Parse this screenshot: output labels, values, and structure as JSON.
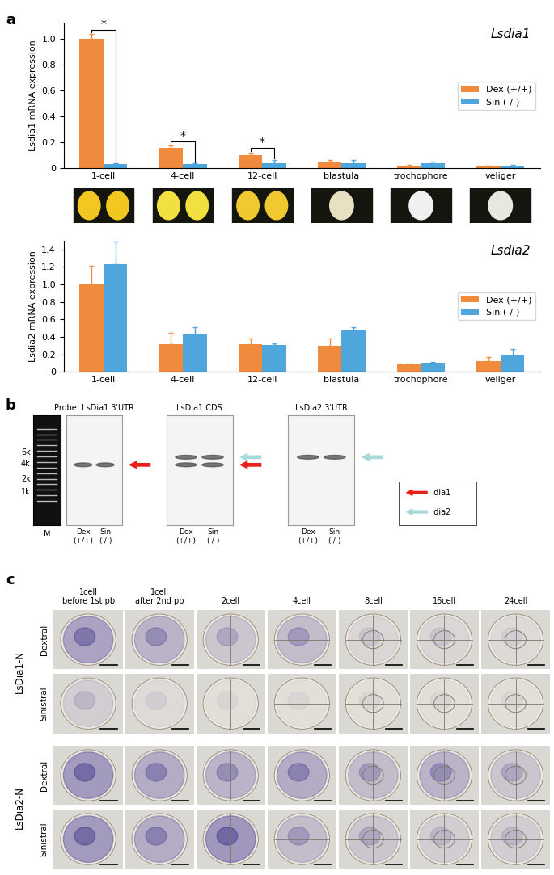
{
  "panel_labels": [
    "a",
    "b",
    "c"
  ],
  "chart_data": [
    {
      "type": "bar",
      "title": "Lsdia1",
      "y_label": "Lsdia1 mRNA expression",
      "categories": [
        "1-cell",
        "4-cell",
        "12-cell",
        "blastula",
        "trochophore",
        "veliger"
      ],
      "series": [
        {
          "name": "Dex (+/+)",
          "color": "#f08a3c",
          "values": [
            1.0,
            0.155,
            0.1,
            0.045,
            0.02,
            0.015
          ],
          "errors": [
            0.04,
            0.02,
            0.02,
            0.02,
            0.005,
            0.005
          ]
        },
        {
          "name": "Sin (-/-)",
          "color": "#4ea6dc",
          "values": [
            0.03,
            0.03,
            0.035,
            0.04,
            0.04,
            0.015
          ],
          "errors": [
            0.005,
            0.005,
            0.03,
            0.02,
            0.01,
            0.01
          ]
        }
      ],
      "ylim": [
        0,
        1.12
      ],
      "yticks": [
        0,
        0.2,
        0.4,
        0.6,
        0.8,
        1.0
      ],
      "legend": "center right",
      "annotations": [
        {
          "category": "1-cell",
          "text": "*"
        },
        {
          "category": "4-cell",
          "text": "*"
        },
        {
          "category": "12-cell",
          "text": "*"
        }
      ]
    },
    {
      "type": "bar",
      "title": "Lsdia2",
      "y_label": "Lsdia2 mRNA expression",
      "categories": [
        "1-cell",
        "4-cell",
        "12-cell",
        "blastula",
        "trochophore",
        "veliger"
      ],
      "series": [
        {
          "name": "Dex (+/+)",
          "color": "#f08a3c",
          "values": [
            1.0,
            0.32,
            0.32,
            0.3,
            0.085,
            0.125
          ],
          "errors": [
            0.21,
            0.13,
            0.06,
            0.08,
            0.01,
            0.04
          ]
        },
        {
          "name": "Sin (-/-)",
          "color": "#4ea6dc",
          "values": [
            1.23,
            0.43,
            0.31,
            0.47,
            0.1,
            0.19
          ],
          "errors": [
            0.26,
            0.08,
            0.02,
            0.04,
            0.01,
            0.07
          ]
        }
      ],
      "ylim": [
        0,
        1.5
      ],
      "yticks": [
        0,
        0.2,
        0.4,
        0.6,
        0.8,
        1.0,
        1.2,
        1.4
      ],
      "legend": "center right",
      "annotations": []
    }
  ],
  "northern_blot": {
    "marker_lane": "M",
    "size_labels": [
      "6k",
      "4k",
      "2k",
      "1k"
    ],
    "panels": [
      {
        "probe": "Probe: LsDia1 3'UTR",
        "lanes": [
          "Dex\n(+/+)",
          "Sin\n(-/-)"
        ],
        "bands": [
          ":dia1"
        ]
      },
      {
        "probe": "LsDia1 CDS",
        "lanes": [
          "Dex\n(+/+)",
          "Sin\n(-/-)"
        ],
        "bands": [
          ":dia2",
          ":dia1"
        ]
      },
      {
        "probe": "LsDia2 3'UTR",
        "lanes": [
          "Dex\n(+/+)",
          "Sin\n(-/-)"
        ],
        "bands": [
          ":dia2"
        ]
      }
    ],
    "arrow_key": [
      {
        "label": ":dia1",
        "color": "#e8201c"
      },
      {
        "label": ":dia2",
        "color": "#a8d8d8"
      }
    ]
  },
  "in_situ": {
    "stages": [
      "1cell\nbefore 1st pb",
      "1cell\nafter 2nd pb",
      "2cell",
      "4cell",
      "8cell",
      "16cell",
      "24cell"
    ],
    "probes": [
      {
        "name": "LsDia1-N",
        "rows": [
          "Dextral",
          "Sinistral"
        ]
      },
      {
        "name": "LsDia2-N",
        "rows": [
          "Dextral",
          "Sinistral"
        ]
      }
    ]
  }
}
